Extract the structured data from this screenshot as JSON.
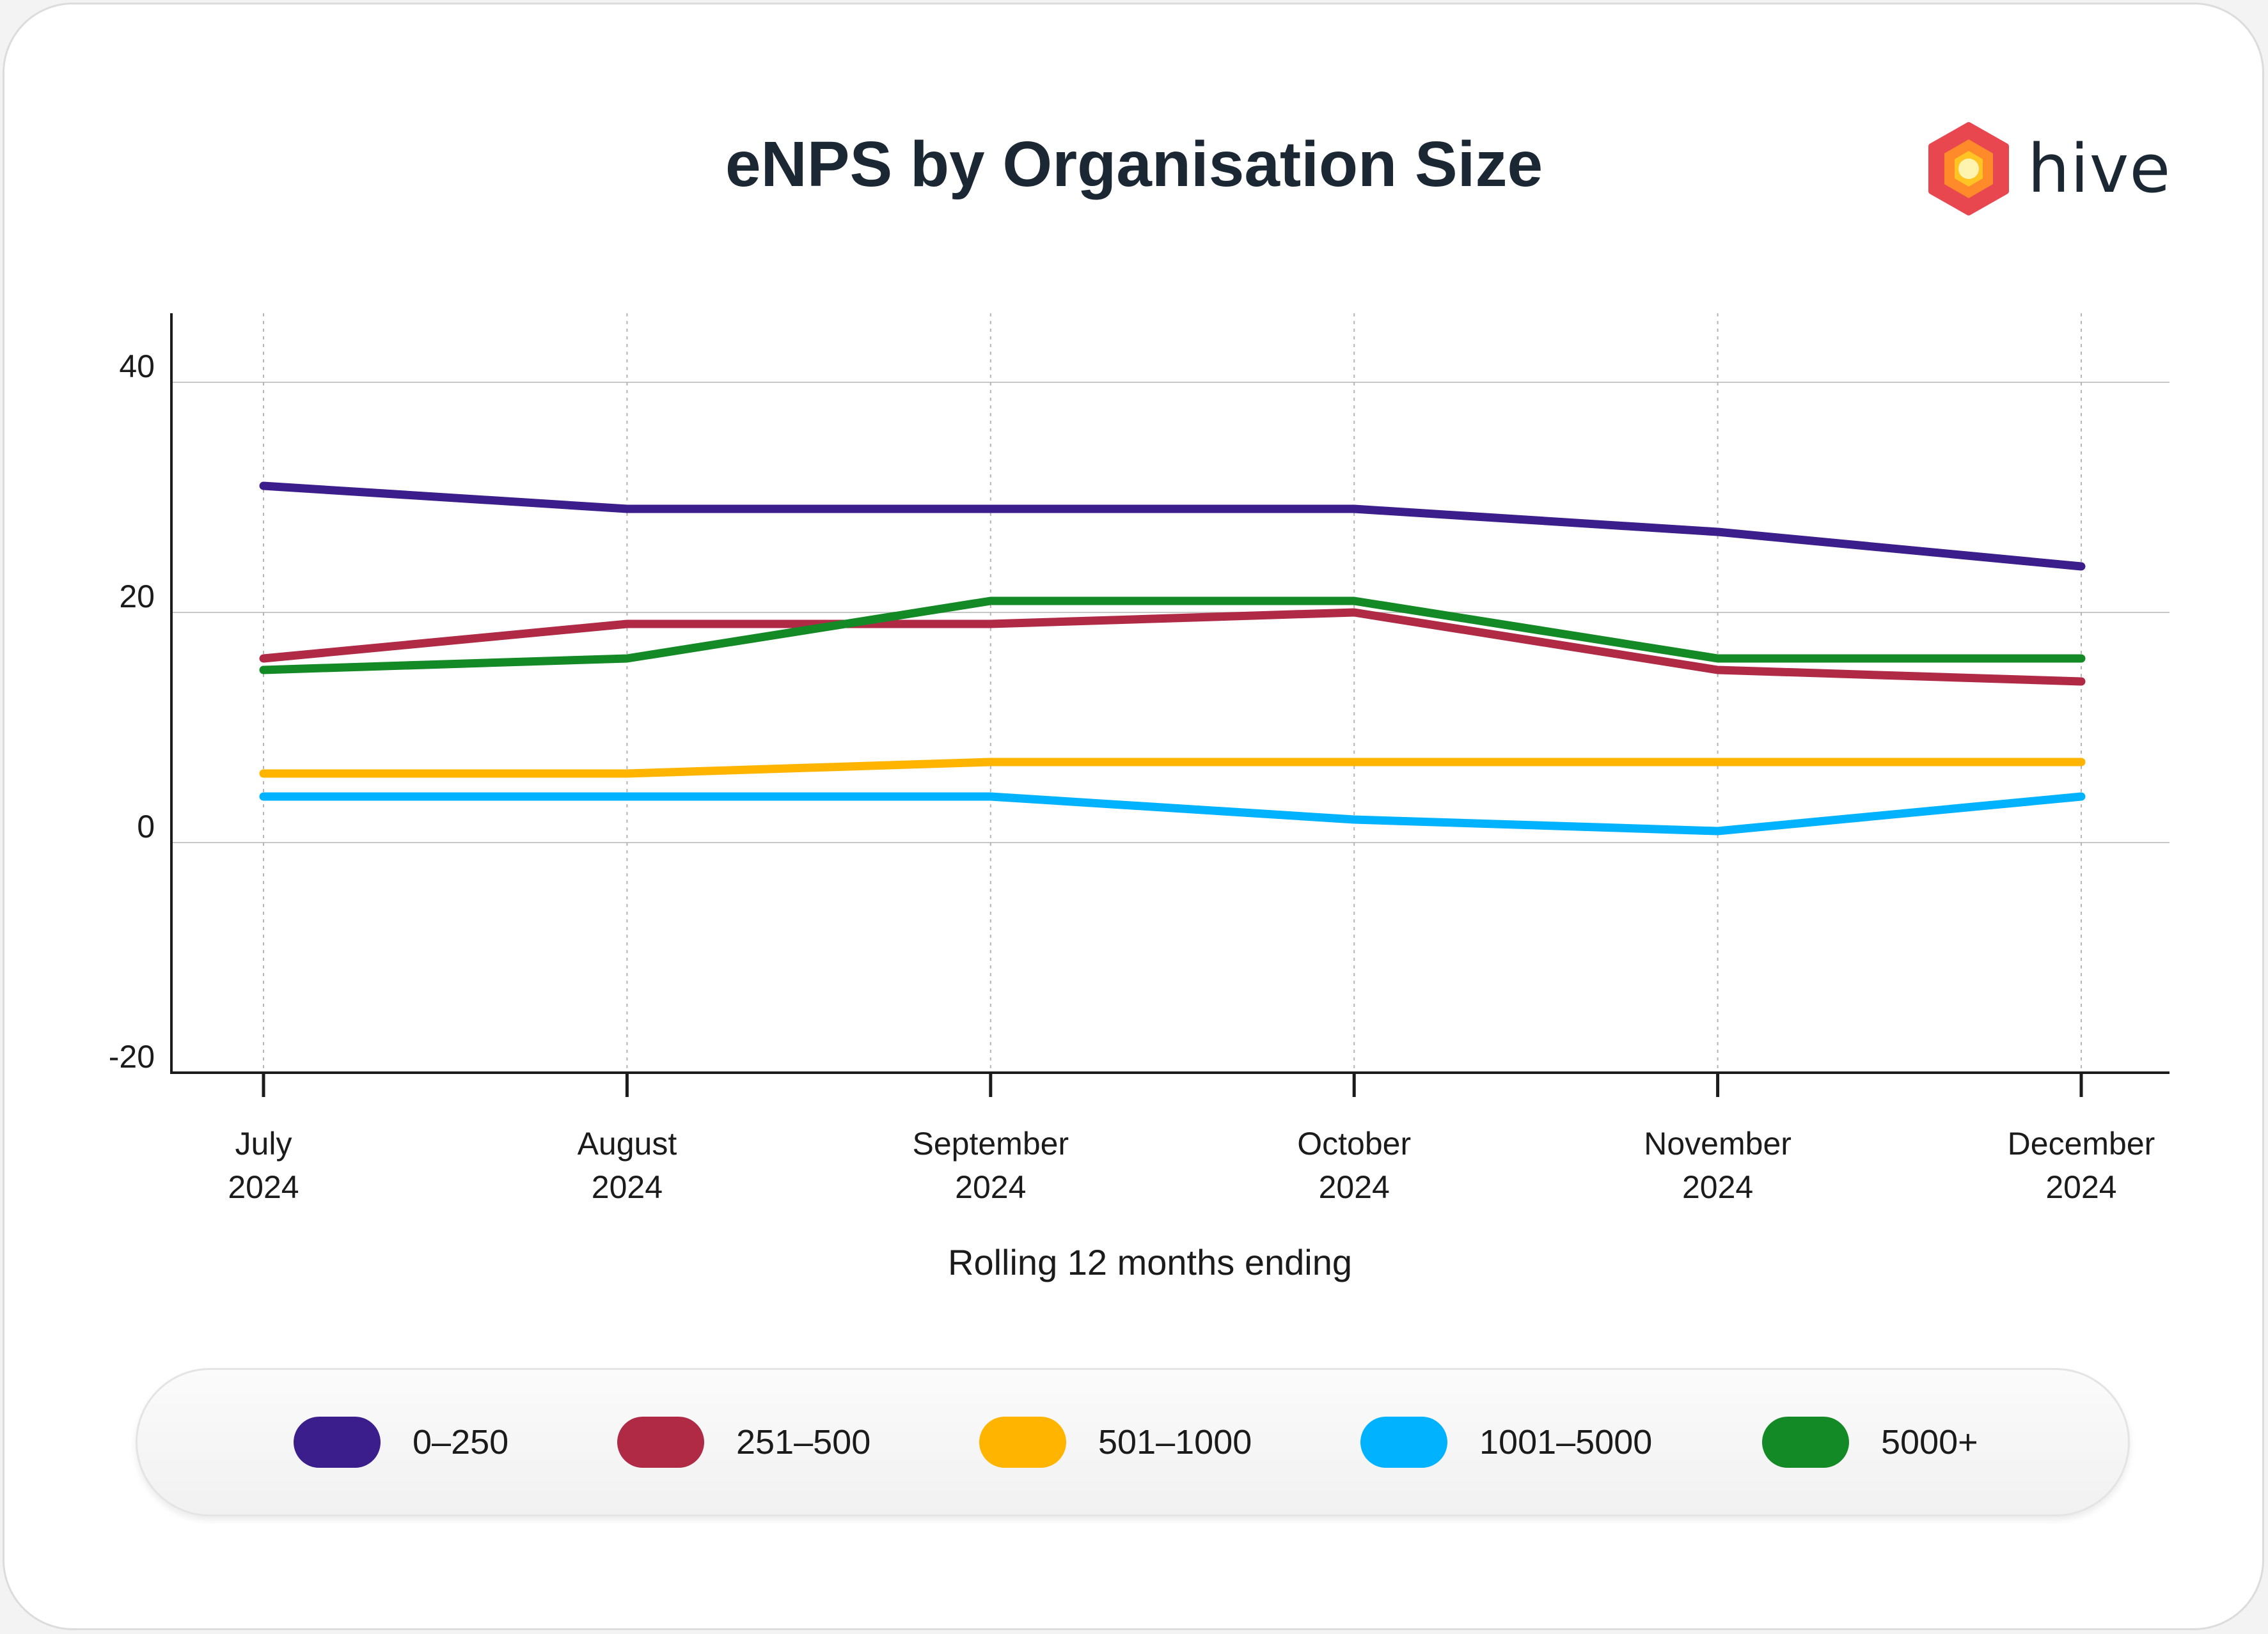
{
  "chart_data": {
    "type": "line",
    "title": "eNPS by Organisation Size",
    "xlabel": "Rolling 12 months ending",
    "ylabel": "",
    "x": [
      [
        "July",
        "2024"
      ],
      [
        "August",
        "2024"
      ],
      [
        "September",
        "2024"
      ],
      [
        "October",
        "2024"
      ],
      [
        "November",
        "2024"
      ],
      [
        "December",
        "2024"
      ]
    ],
    "ylim": [
      -20,
      46
    ],
    "yticks": [
      40,
      20,
      0,
      -20
    ],
    "grid": true,
    "legend_position": "bottom",
    "series": [
      {
        "name": "0–250",
        "color": "#3c1d8c",
        "values": [
          31,
          29,
          29,
          29,
          27,
          24
        ]
      },
      {
        "name": "251–500",
        "color": "#b12a45",
        "values": [
          16,
          19,
          19,
          20,
          15,
          14
        ]
      },
      {
        "name": "501–1000",
        "color": "#ffb400",
        "values": [
          6,
          6,
          7,
          7,
          7,
          7
        ]
      },
      {
        "name": "1001–5000",
        "color": "#00b2ff",
        "values": [
          4,
          4,
          4,
          2,
          1,
          4
        ]
      },
      {
        "name": "5000+",
        "color": "#148a26",
        "values": [
          15,
          16,
          21,
          21,
          16,
          16
        ]
      }
    ]
  },
  "logo": {
    "text": "hive"
  }
}
